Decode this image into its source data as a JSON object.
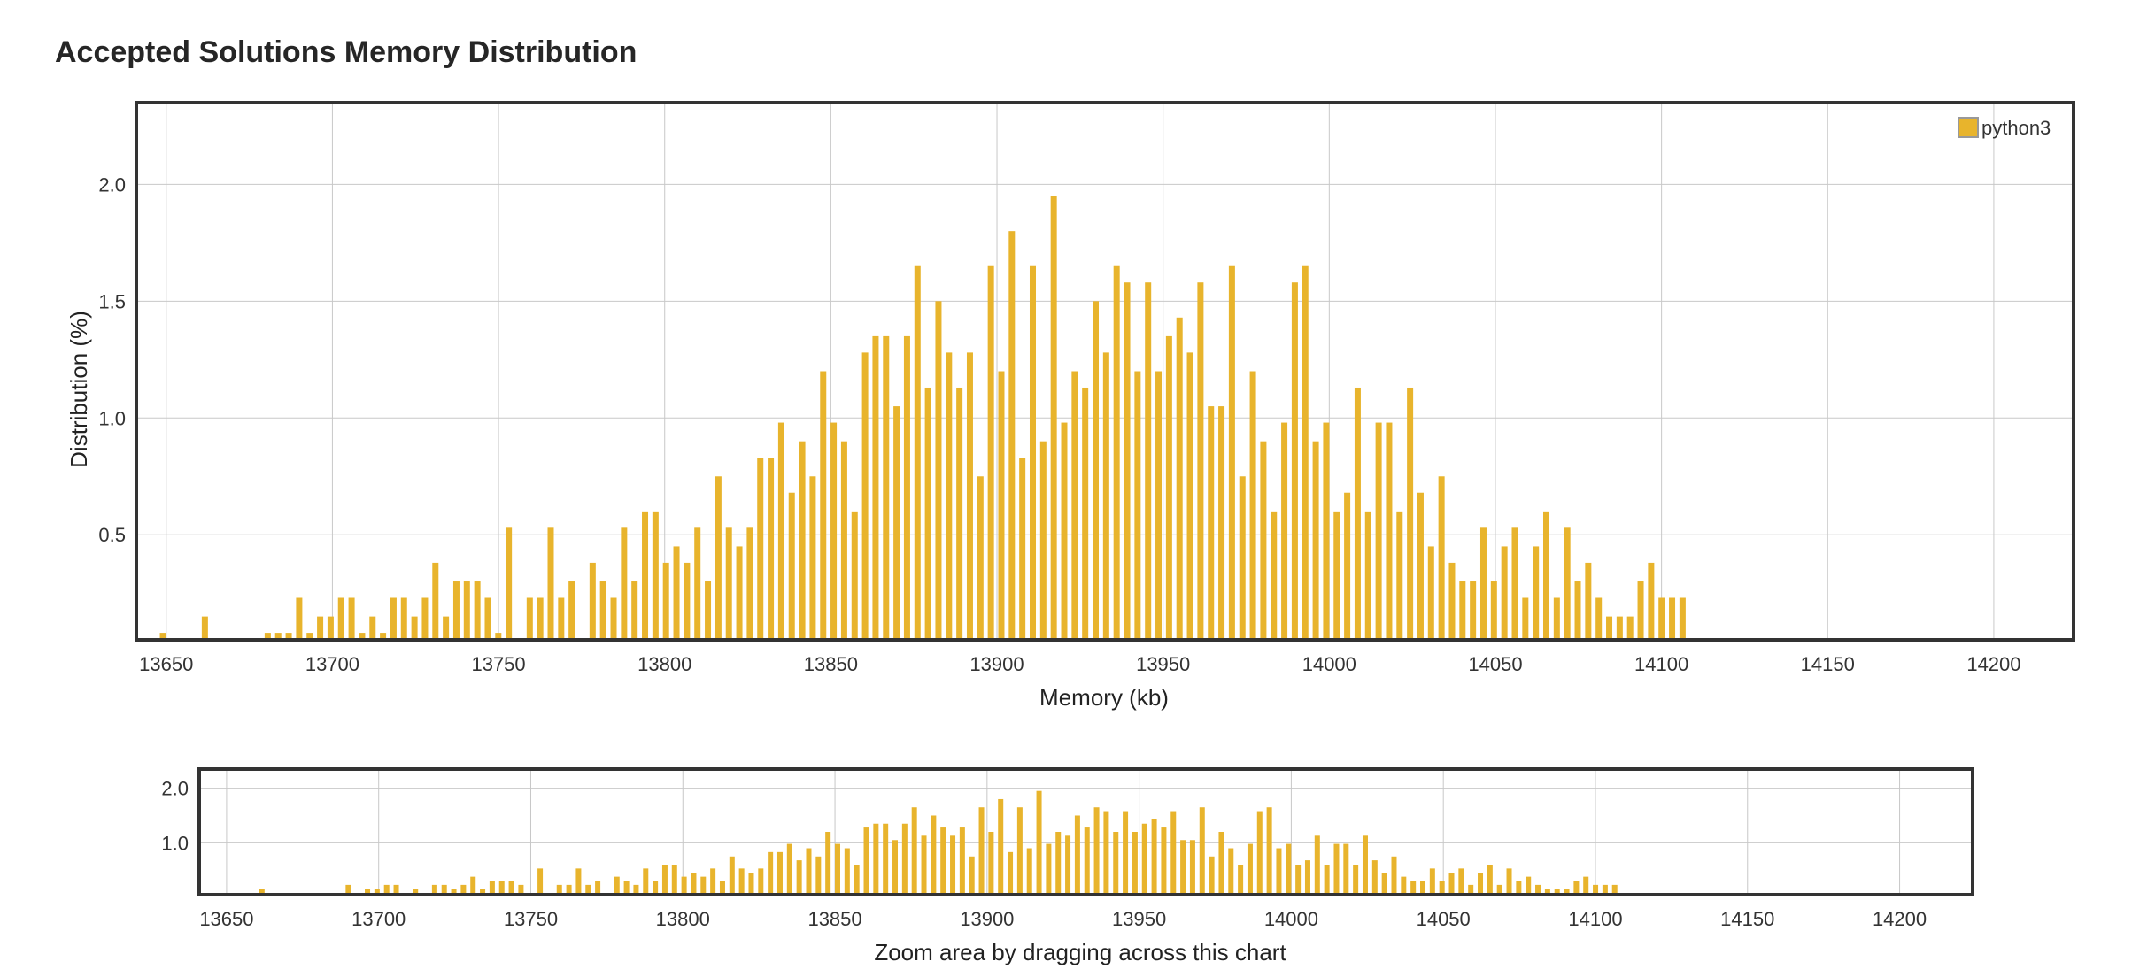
{
  "title": "Accepted Solutions Memory Distribution",
  "zoom_caption": "Zoom area by dragging across this chart",
  "colors": {
    "bar": "#e8b42c",
    "grid": "#c8c8c8",
    "frame": "#333333"
  },
  "chart_data": [
    {
      "type": "bar",
      "name": "main",
      "xlabel": "Memory (kb)",
      "ylabel": "Distribution (%)",
      "xlim": [
        13641,
        14224
      ],
      "ylim": [
        0.05,
        2.35
      ],
      "xticks": [
        13650,
        13700,
        13750,
        13800,
        13850,
        13900,
        13950,
        14000,
        14050,
        14100,
        14150,
        14200
      ],
      "yticks": [
        0.5,
        1.0,
        1.5,
        2.0
      ],
      "ytick_labels": [
        "0.5",
        "1.0",
        "1.5",
        "2.0"
      ],
      "grid": true,
      "legend": "top-right",
      "series": [
        {
          "name": "python3",
          "x_start": 13649,
          "x_step": 3.154,
          "values": [
            0.08,
            0,
            0,
            0,
            0.15,
            0,
            0,
            0,
            0,
            0,
            0.08,
            0.08,
            0.08,
            0.23,
            0.08,
            0.15,
            0.15,
            0.23,
            0.23,
            0.08,
            0.15,
            0.08,
            0.23,
            0.23,
            0.15,
            0.23,
            0.38,
            0.15,
            0.3,
            0.3,
            0.3,
            0.23,
            0.08,
            0.53,
            0,
            0.23,
            0.23,
            0.53,
            0.23,
            0.3,
            0,
            0.38,
            0.3,
            0.23,
            0.53,
            0.3,
            0.6,
            0.6,
            0.38,
            0.45,
            0.38,
            0.53,
            0.3,
            0.75,
            0.53,
            0.45,
            0.53,
            0.83,
            0.83,
            0.98,
            0.68,
            0.9,
            0.75,
            1.2,
            0.98,
            0.9,
            0.6,
            1.28,
            1.35,
            1.35,
            1.05,
            1.35,
            1.65,
            1.13,
            1.5,
            1.28,
            1.13,
            1.28,
            0.75,
            1.65,
            1.2,
            1.8,
            0.83,
            1.65,
            0.9,
            1.95,
            0.98,
            1.2,
            1.13,
            1.5,
            1.28,
            1.65,
            1.58,
            1.2,
            1.58,
            1.2,
            1.35,
            1.43,
            1.28,
            1.58,
            1.05,
            1.05,
            1.65,
            0.75,
            1.2,
            0.9,
            0.6,
            0.98,
            1.58,
            1.65,
            0.9,
            0.98,
            0.6,
            0.68,
            1.13,
            0.6,
            0.98,
            0.98,
            0.6,
            1.13,
            0.68,
            0.45,
            0.75,
            0.38,
            0.3,
            0.3,
            0.53,
            0.3,
            0.45,
            0.53,
            0.23,
            0.45,
            0.6,
            0.23,
            0.53,
            0.3,
            0.38,
            0.23,
            0.15,
            0.15,
            0.15,
            0.3,
            0.38,
            0.23,
            0.23,
            0.23
          ]
        }
      ]
    },
    {
      "type": "bar",
      "name": "navigator",
      "xlim": [
        13641,
        14224
      ],
      "ylim": [
        0.05,
        2.35
      ],
      "xticks": [
        13650,
        13700,
        13750,
        13800,
        13850,
        13900,
        13950,
        14000,
        14050,
        14100,
        14150,
        14200
      ],
      "yticks": [
        1.0,
        2.0
      ],
      "ytick_labels": [
        "1.0",
        "2.0"
      ],
      "grid": true,
      "series_ref": "main"
    }
  ]
}
